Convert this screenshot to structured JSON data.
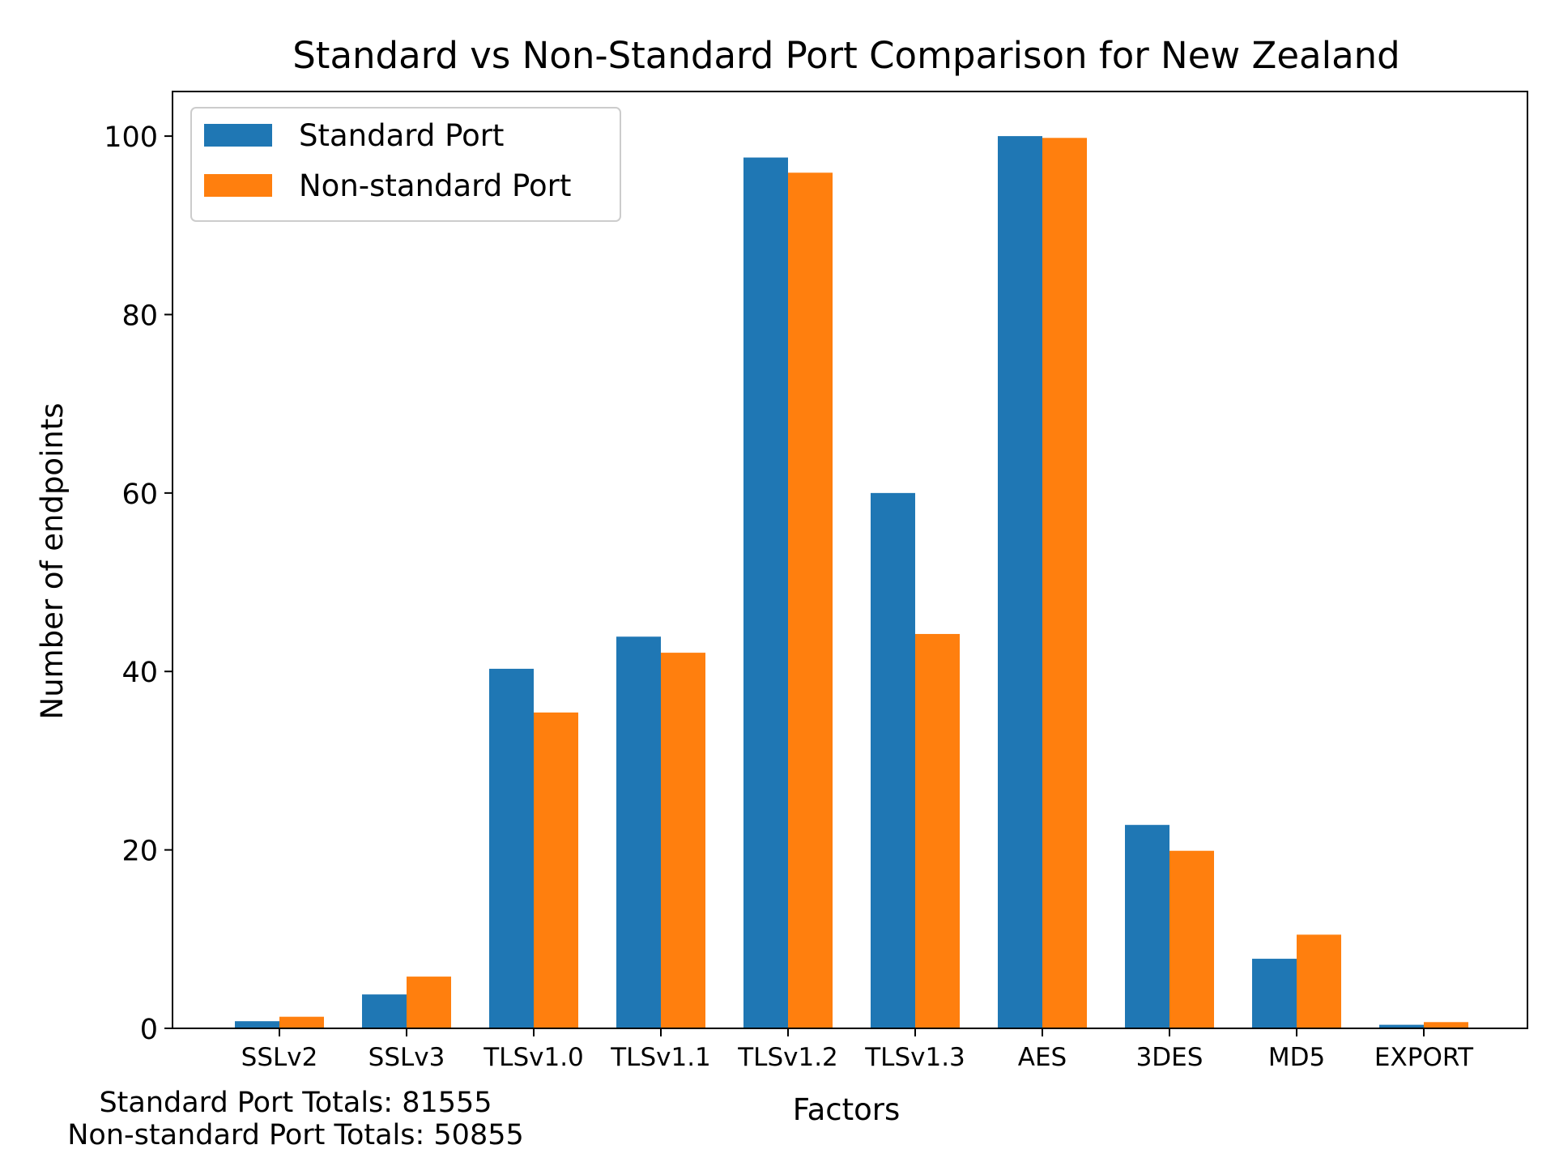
{
  "chart_data": {
    "type": "bar",
    "title": "Standard vs Non-Standard Port Comparison for New Zealand",
    "xlabel": "Factors",
    "ylabel": "Number of endpoints",
    "ylim": [
      0,
      105
    ],
    "yticks": [
      0,
      20,
      40,
      60,
      80,
      100
    ],
    "categories": [
      "SSLv2",
      "SSLv3",
      "TLSv1.0",
      "TLSv1.1",
      "TLSv1.2",
      "TLSv1.3",
      "AES",
      "3DES",
      "MD5",
      "EXPORT"
    ],
    "series": [
      {
        "name": "Standard Port",
        "color": "#1f77b4",
        "values": [
          0.8,
          3.8,
          40.3,
          43.9,
          97.6,
          60.0,
          100.0,
          22.8,
          7.8,
          0.4
        ]
      },
      {
        "name": "Non-standard Port",
        "color": "#ff7f0e",
        "values": [
          1.3,
          5.8,
          35.4,
          42.1,
          95.9,
          44.2,
          99.8,
          19.9,
          10.5,
          0.7
        ]
      }
    ],
    "legend_position": "top-left",
    "grid": false
  },
  "totals": {
    "standard": "Standard Port Totals: 81555",
    "nonstandard": "Non-standard Port Totals: 50855"
  }
}
